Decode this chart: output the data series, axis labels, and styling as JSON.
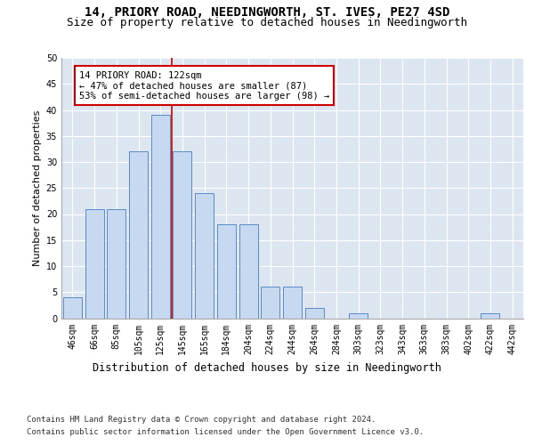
{
  "title1": "14, PRIORY ROAD, NEEDINGWORTH, ST. IVES, PE27 4SD",
  "title2": "Size of property relative to detached houses in Needingworth",
  "xlabel": "Distribution of detached houses by size in Needingworth",
  "ylabel": "Number of detached properties",
  "categories": [
    "46sqm",
    "66sqm",
    "85sqm",
    "105sqm",
    "125sqm",
    "145sqm",
    "165sqm",
    "184sqm",
    "204sqm",
    "224sqm",
    "244sqm",
    "264sqm",
    "284sqm",
    "303sqm",
    "323sqm",
    "343sqm",
    "363sqm",
    "383sqm",
    "402sqm",
    "422sqm",
    "442sqm"
  ],
  "values": [
    4,
    21,
    21,
    32,
    39,
    32,
    24,
    18,
    18,
    6,
    6,
    2,
    0,
    1,
    0,
    0,
    0,
    0,
    0,
    1,
    0
  ],
  "bar_color": "#c6d9f0",
  "bar_edge_color": "#5a8ac6",
  "background_color": "#dce6f1",
  "annotation_label": "14 PRIORY ROAD: 122sqm",
  "annotation_line1": "← 47% of detached houses are smaller (87)",
  "annotation_line2": "53% of semi-detached houses are larger (98) →",
  "annotation_box_color": "#ffffff",
  "annotation_border_color": "#cc0000",
  "vline_color": "#cc0000",
  "vline_x": 4.5,
  "ylim": [
    0,
    50
  ],
  "yticks": [
    0,
    5,
    10,
    15,
    20,
    25,
    30,
    35,
    40,
    45,
    50
  ],
  "footer1": "Contains HM Land Registry data © Crown copyright and database right 2024.",
  "footer2": "Contains public sector information licensed under the Open Government Licence v3.0.",
  "title1_fontsize": 10,
  "title2_fontsize": 9,
  "xlabel_fontsize": 8.5,
  "ylabel_fontsize": 8,
  "tick_fontsize": 7,
  "footer_fontsize": 6.5,
  "annotation_fontsize": 7.5
}
